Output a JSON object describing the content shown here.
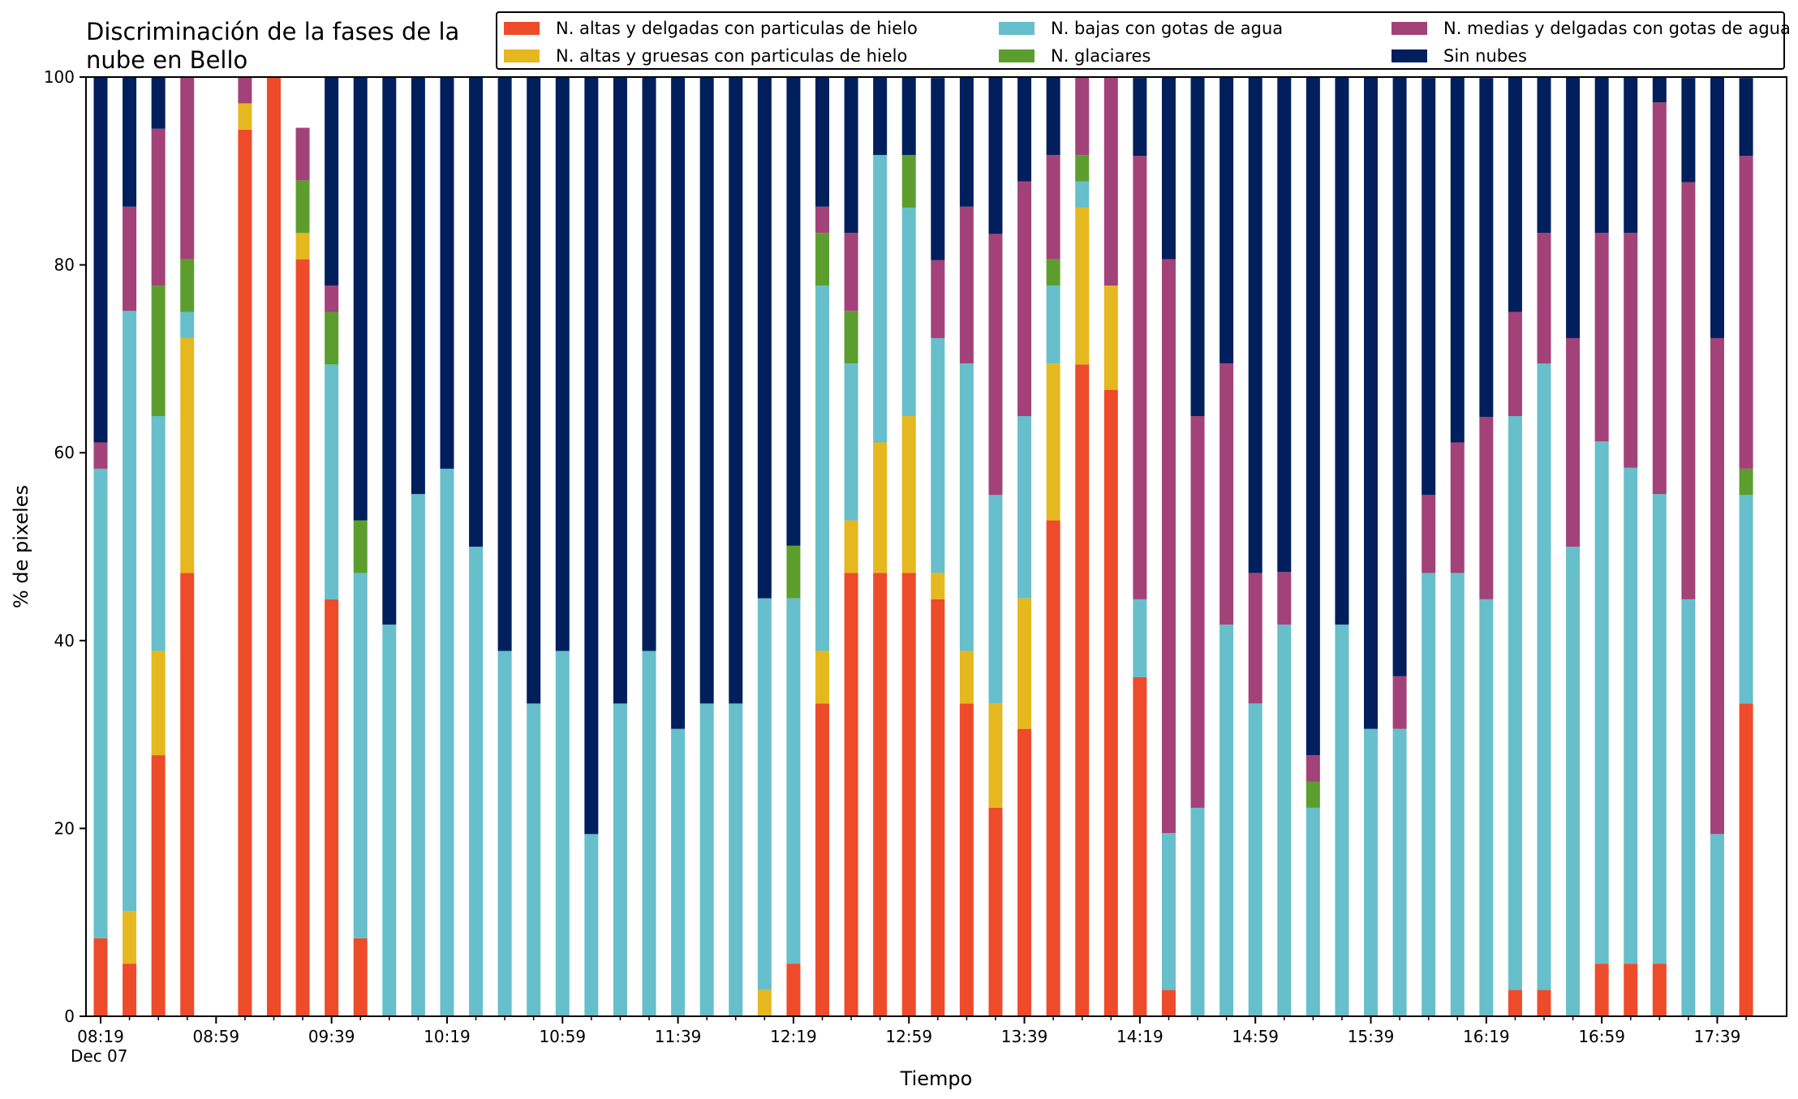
{
  "chart_data": {
    "type": "bar",
    "stacked": true,
    "title": "Discriminación de la fases de la nube en Bello",
    "xlabel": "Tiempo",
    "ylabel": "% de pixeles",
    "ylim": [
      0,
      100
    ],
    "yticks": [
      0,
      20,
      40,
      60,
      80,
      100
    ],
    "xtick_labels": [
      "08:19",
      "08:59",
      "09:39",
      "10:19",
      "10:59",
      "11:39",
      "12:19",
      "12:59",
      "13:39",
      "14:19",
      "14:59",
      "15:39",
      "16:19",
      "16:59",
      "17:39"
    ],
    "xtick_sublabel": "Dec 07",
    "grid": false,
    "legend_position": "top-right",
    "categories": [
      "08:19",
      "08:29",
      "08:39",
      "08:49",
      "08:59",
      "09:09",
      "09:19",
      "09:29",
      "09:39",
      "09:49",
      "09:59",
      "10:09",
      "10:19",
      "10:29",
      "10:39",
      "10:49",
      "10:59",
      "11:09",
      "11:19",
      "11:29",
      "11:39",
      "11:49",
      "11:59",
      "12:09",
      "12:19",
      "12:29",
      "12:39",
      "12:49",
      "12:59",
      "13:09",
      "13:19",
      "13:29",
      "13:39",
      "13:49",
      "13:59",
      "14:09",
      "14:19",
      "14:29",
      "14:39",
      "14:49",
      "14:59",
      "15:09",
      "15:19",
      "15:29",
      "15:39",
      "15:49",
      "15:59",
      "16:09",
      "16:19",
      "16:29",
      "16:39",
      "16:49",
      "16:59",
      "17:09",
      "17:19",
      "17:29",
      "17:39",
      "17:49"
    ],
    "series": [
      {
        "name": "N. altas y delgadas con particulas de hielo",
        "color": "#ee4b2b",
        "values": [
          8.3,
          5.6,
          27.8,
          47.2,
          0,
          94.4,
          100,
          80.6,
          44.4,
          8.3,
          0,
          0,
          0,
          0,
          0,
          0,
          0,
          0,
          0,
          0,
          0,
          0,
          0,
          0,
          5.6,
          33.3,
          47.2,
          47.2,
          47.2,
          44.4,
          33.3,
          22.2,
          30.6,
          52.8,
          69.4,
          66.7,
          36.1,
          2.8,
          0,
          0,
          0,
          0,
          0,
          0,
          0,
          0,
          0,
          0,
          0,
          2.8,
          2.8,
          0,
          5.6,
          5.6,
          5.6,
          0,
          0,
          33.3
        ]
      },
      {
        "name": "N. altas y gruesas con particulas de hielo",
        "color": "#e4b81e",
        "values": [
          0,
          5.6,
          11.1,
          25,
          0,
          2.8,
          0,
          2.8,
          0,
          0,
          0,
          0,
          0,
          0,
          0,
          0,
          0,
          0,
          0,
          0,
          0,
          0,
          0,
          2.8,
          0,
          5.6,
          5.6,
          13.9,
          16.7,
          2.8,
          5.6,
          11.1,
          13.9,
          16.7,
          16.7,
          11.1,
          0,
          0,
          0,
          0,
          0,
          0,
          0,
          0,
          0,
          0,
          0,
          0,
          0,
          0,
          0,
          0,
          0,
          0,
          0,
          0,
          0,
          0
        ]
      },
      {
        "name": "N. bajas con gotas de agua",
        "color": "#66bfcb",
        "values": [
          50,
          63.9,
          25,
          2.8,
          0,
          0,
          0,
          0,
          25,
          38.9,
          41.7,
          55.6,
          58.3,
          50,
          38.9,
          33.3,
          38.9,
          19.4,
          33.3,
          38.9,
          30.6,
          33.3,
          33.3,
          41.7,
          38.9,
          38.9,
          16.7,
          30.6,
          22.2,
          25,
          30.6,
          22.2,
          19.4,
          8.3,
          2.8,
          0,
          8.3,
          16.7,
          22.2,
          41.7,
          33.3,
          41.7,
          22.2,
          41.7,
          30.6,
          30.6,
          47.2,
          47.2,
          44.4,
          61.1,
          66.7,
          50,
          55.6,
          52.8,
          50,
          44.4,
          19.4,
          22.2
        ]
      },
      {
        "name": "N. glaciares",
        "color": "#5c9e2e",
        "values": [
          0,
          0,
          13.9,
          5.6,
          0,
          0,
          0,
          5.6,
          5.6,
          5.6,
          0,
          0,
          0,
          0,
          0,
          0,
          0,
          0,
          0,
          0,
          0,
          0,
          0,
          0,
          5.6,
          5.6,
          5.6,
          0,
          5.6,
          0,
          0,
          0,
          0,
          2.8,
          2.8,
          0,
          0,
          0,
          0,
          0,
          0,
          0,
          2.8,
          0,
          0,
          0,
          0,
          0,
          0,
          0,
          0,
          0,
          0,
          0,
          0,
          0,
          0,
          2.8
        ]
      },
      {
        "name": "N. medias y delgadas con gotas de agua",
        "color": "#a24278",
        "values": [
          2.8,
          11.1,
          16.7,
          19.4,
          0,
          2.8,
          0,
          5.6,
          2.8,
          0,
          0,
          0,
          0,
          0,
          0,
          0,
          0,
          0,
          0,
          0,
          0,
          0,
          0,
          0,
          0,
          2.8,
          8.3,
          0,
          0,
          8.3,
          16.7,
          27.8,
          25,
          11.1,
          8.3,
          22.2,
          47.2,
          61.1,
          41.7,
          27.8,
          13.9,
          5.6,
          2.8,
          0,
          0,
          5.6,
          8.3,
          13.9,
          19.4,
          11.1,
          13.9,
          22.2,
          22.2,
          25,
          41.7,
          44.4,
          52.8,
          33.3
        ]
      },
      {
        "name": "Sin nubes",
        "color": "#001f5c",
        "values": [
          38.9,
          13.9,
          5.6,
          0,
          0,
          0,
          0,
          0,
          22.2,
          47.2,
          58.3,
          44.4,
          41.7,
          50,
          61.1,
          66.7,
          61.1,
          80.6,
          66.7,
          61.1,
          69.4,
          66.7,
          66.7,
          55.6,
          50,
          13.9,
          16.7,
          8.3,
          8.3,
          19.4,
          13.9,
          16.7,
          11.1,
          8.3,
          0,
          0,
          8.3,
          19.4,
          36.1,
          30.6,
          52.8,
          52.8,
          72.2,
          58.3,
          69.4,
          63.9,
          44.4,
          38.9,
          36.1,
          25,
          16.7,
          27.8,
          16.7,
          16.7,
          2.8,
          11.1,
          27.8,
          8.3
        ]
      }
    ]
  }
}
